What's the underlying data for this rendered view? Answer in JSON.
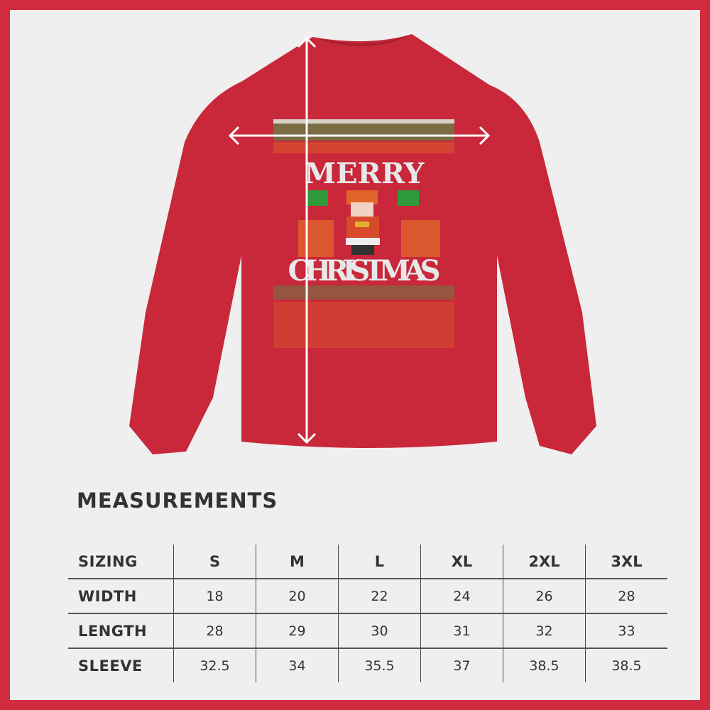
{
  "colors": {
    "frame": "#d12b3f",
    "background": "#efefef",
    "shirt": "#c8283a",
    "text": "#333333"
  },
  "shirt_print": {
    "line1": "MERRY",
    "line2": "CHRISTMAS"
  },
  "title": "MEASUREMENTS",
  "table": {
    "headers": [
      "SIZING",
      "S",
      "M",
      "L",
      "XL",
      "2XL",
      "3XL"
    ],
    "rows": [
      {
        "label": "WIDTH",
        "values": [
          "18",
          "20",
          "22",
          "24",
          "26",
          "28"
        ]
      },
      {
        "label": "LENGTH",
        "values": [
          "28",
          "29",
          "30",
          "31",
          "32",
          "33"
        ]
      },
      {
        "label": "SLEEVE",
        "values": [
          "32.5",
          "34",
          "35.5",
          "37",
          "38.5",
          "38.5"
        ]
      }
    ]
  }
}
